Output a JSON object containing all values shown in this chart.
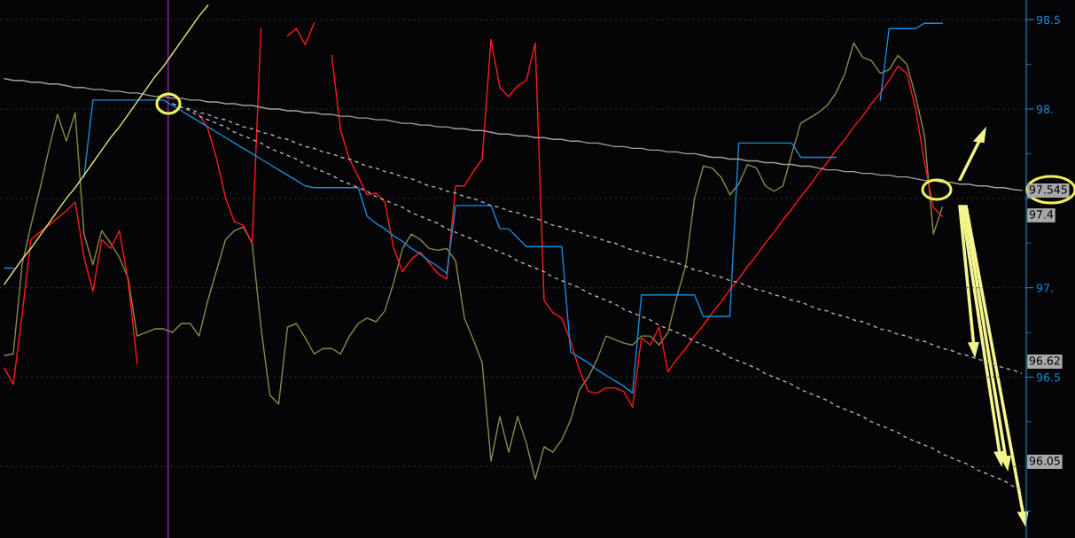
{
  "chart_data": {
    "type": "line",
    "categories": [
      null,
      null,
      null,
      null,
      null,
      null,
      null,
      null,
      null,
      null,
      null,
      null,
      null,
      null,
      null,
      null,
      null,
      null,
      null,
      null,
      null,
      null,
      null,
      null,
      null,
      null,
      null,
      null,
      null,
      null,
      null,
      null,
      null,
      null,
      null,
      null,
      null,
      null,
      null,
      null,
      null,
      null,
      null,
      null,
      null,
      null,
      null,
      null,
      null,
      null,
      null,
      null,
      null,
      null,
      null,
      null,
      null,
      null,
      null,
      null,
      null,
      null,
      null,
      null,
      null,
      null,
      null,
      null,
      null,
      null,
      null,
      null,
      null,
      null,
      null,
      null,
      null,
      null,
      null,
      null,
      null,
      null,
      null,
      null,
      null,
      null,
      null,
      null,
      null,
      null,
      null,
      null,
      null,
      null,
      null,
      null,
      null,
      null,
      null,
      null,
      null,
      null,
      null,
      null,
      null,
      null,
      null,
      null,
      null,
      null,
      null,
      null,
      null,
      null,
      null,
      null
    ],
    "ylim": [
      95.6,
      98.61
    ],
    "yticks": [
      {
        "value": 96,
        "label": null
      },
      {
        "value": 96.5,
        "label": "96.5"
      },
      {
        "value": 97,
        "label": "97."
      },
      {
        "value": 97.5,
        "label": null
      },
      {
        "value": 98,
        "label": "98."
      },
      {
        "value": 98.5,
        "label": "98.5"
      }
    ],
    "tick_labels": "y",
    "grid": "y",
    "marker": "none",
    "series": [
      {
        "color": "#8c8a4e",
        "values": [
          96.62,
          96.63,
          97.13,
          97.35,
          97.55,
          97.77,
          97.97,
          97.82,
          97.98,
          97.3,
          97.13,
          97.32,
          97.25,
          97.17,
          97.05,
          96.73,
          96.75,
          96.77,
          96.77,
          96.75,
          96.8,
          96.8,
          96.73,
          96.93,
          97.1,
          97.27,
          97.32,
          97.34,
          97.25,
          96.78,
          96.4,
          96.35,
          96.78,
          96.8,
          96.72,
          96.63,
          96.66,
          96.66,
          96.63,
          96.73,
          96.8,
          96.83,
          96.81,
          96.87,
          97.03,
          97.22,
          97.3,
          97.27,
          97.22,
          97.21,
          97.22,
          97.15,
          96.83,
          96.71,
          96.58,
          96.03,
          96.28,
          96.08,
          96.28,
          96.13,
          95.93,
          96.11,
          96.08,
          96.15,
          96.26,
          96.43,
          96.5,
          96.6,
          96.73,
          96.71,
          96.69,
          96.68,
          96.73,
          96.73,
          96.68,
          96.75,
          96.95,
          97.12,
          97.5,
          97.68,
          97.67,
          97.62,
          97.52,
          97.58,
          97.69,
          97.67,
          97.57,
          97.54,
          97.57,
          97.75,
          97.92,
          97.95,
          97.98,
          98.02,
          98.09,
          98.2,
          98.37,
          98.29,
          98.27,
          98.2,
          98.22,
          98.3,
          98.25,
          98.07,
          97.85,
          97.3,
          97.45,
          null,
          null,
          null,
          null,
          null,
          null,
          null,
          null,
          null
        ]
      },
      {
        "color": "#ff1a1a",
        "values": [
          96.55,
          96.46,
          96.85,
          97.27,
          97.31,
          97.35,
          97.39,
          97.43,
          97.48,
          97.17,
          96.98,
          97.27,
          97.22,
          97.32,
          97.03,
          96.58,
          null,
          null,
          null,
          null,
          null,
          null,
          97.97,
          97.89,
          97.72,
          97.5,
          97.37,
          97.35,
          97.25,
          98.45,
          null,
          null,
          98.41,
          98.45,
          98.36,
          98.48,
          null,
          98.3,
          97.88,
          97.72,
          97.62,
          97.52,
          97.53,
          97.48,
          97.22,
          97.09,
          97.16,
          97.2,
          97.14,
          97.08,
          97.05,
          97.57,
          97.57,
          97.65,
          97.72,
          98.39,
          98.12,
          98.07,
          98.13,
          98.16,
          98.37,
          96.93,
          96.86,
          96.83,
          96.7,
          96.54,
          96.42,
          96.41,
          96.44,
          96.44,
          96.42,
          96.33,
          96.72,
          96.68,
          96.78,
          96.53,
          96.6,
          96.66,
          96.73,
          96.79,
          96.86,
          96.92,
          96.99,
          97.05,
          97.12,
          97.18,
          97.25,
          97.31,
          97.38,
          97.44,
          97.51,
          97.57,
          97.64,
          97.7,
          97.77,
          97.83,
          97.9,
          97.96,
          98.03,
          98.09,
          98.16,
          98.24,
          98.2,
          98.0,
          97.7,
          97.45,
          97.4,
          null,
          null,
          null,
          null,
          null,
          null,
          null,
          null,
          null
        ]
      },
      {
        "color": "#1a8cd8",
        "values": [
          97.11,
          97.11,
          null,
          null,
          null,
          null,
          null,
          null,
          null,
          97.62,
          98.05,
          98.05,
          98.05,
          98.05,
          98.05,
          98.05,
          98.05,
          98.05,
          98.05,
          98.02,
          97.99,
          97.96,
          97.93,
          97.9,
          97.87,
          97.84,
          97.81,
          97.78,
          97.75,
          97.72,
          97.69,
          97.66,
          97.63,
          97.6,
          97.57,
          97.56,
          97.56,
          97.56,
          97.56,
          97.56,
          97.56,
          97.4,
          97.36,
          97.33,
          97.29,
          97.26,
          97.22,
          97.19,
          97.15,
          97.12,
          97.08,
          97.46,
          97.46,
          97.46,
          97.46,
          97.46,
          97.33,
          97.33,
          97.28,
          97.23,
          97.23,
          97.23,
          97.23,
          97.23,
          96.64,
          96.61,
          96.58,
          96.54,
          96.51,
          96.48,
          96.45,
          96.41,
          96.96,
          96.96,
          96.96,
          96.96,
          96.96,
          96.96,
          96.96,
          96.84,
          96.84,
          96.84,
          96.84,
          97.81,
          97.81,
          97.81,
          97.81,
          97.81,
          97.81,
          97.81,
          97.73,
          97.73,
          97.73,
          97.73,
          97.73,
          null,
          null,
          null,
          null,
          98.05,
          98.45,
          98.45,
          98.45,
          98.45,
          98.48,
          98.48,
          98.48,
          null,
          null,
          null,
          null,
          null,
          null,
          null,
          null,
          null
        ]
      },
      {
        "color": "#a0a0a0",
        "values": [
          98.17,
          98.16,
          98.16,
          98.15,
          98.15,
          98.14,
          98.14,
          98.13,
          98.12,
          98.12,
          98.11,
          98.11,
          98.1,
          98.1,
          98.09,
          98.09,
          98.08,
          98.07,
          98.07,
          98.06,
          98.06,
          98.05,
          98.05,
          98.04,
          98.04,
          98.03,
          98.03,
          98.02,
          98.02,
          98.01,
          98.0,
          98.0,
          97.99,
          97.99,
          97.98,
          97.98,
          97.97,
          97.97,
          97.96,
          97.96,
          97.95,
          97.95,
          97.94,
          97.94,
          97.93,
          97.92,
          97.92,
          97.91,
          97.91,
          97.9,
          97.9,
          97.89,
          97.89,
          97.88,
          97.88,
          97.87,
          97.86,
          97.86,
          97.85,
          97.85,
          97.84,
          97.84,
          97.83,
          97.83,
          97.82,
          97.82,
          97.81,
          97.81,
          97.8,
          97.79,
          97.79,
          97.78,
          97.78,
          97.77,
          97.77,
          97.76,
          97.76,
          97.75,
          97.75,
          97.74,
          97.73,
          97.73,
          97.72,
          97.72,
          97.71,
          97.71,
          97.7,
          97.7,
          97.69,
          97.69,
          97.68,
          97.68,
          97.67,
          97.66,
          97.66,
          97.65,
          97.65,
          97.64,
          97.64,
          97.63,
          97.63,
          97.62,
          97.62,
          97.61,
          97.6,
          97.6,
          97.59,
          97.59,
          97.58,
          97.58,
          97.57,
          97.57,
          97.56,
          97.56,
          97.55,
          97.545
        ]
      },
      {
        "color": "#b4b4b4",
        "line_style": "dashed",
        "values": [
          null,
          null,
          null,
          null,
          null,
          null,
          null,
          null,
          null,
          null,
          null,
          null,
          null,
          null,
          null,
          null,
          null,
          null,
          null,
          98.03,
          98.01,
          98.0,
          97.98,
          97.97,
          97.95,
          97.94,
          97.92,
          97.9,
          97.89,
          97.87,
          97.86,
          97.84,
          97.83,
          97.81,
          97.79,
          97.78,
          97.76,
          97.75,
          97.73,
          97.72,
          97.7,
          97.68,
          97.67,
          97.65,
          97.64,
          97.62,
          97.61,
          97.59,
          97.57,
          97.56,
          97.54,
          97.53,
          97.51,
          97.5,
          97.48,
          97.46,
          97.45,
          97.43,
          97.42,
          97.4,
          97.39,
          97.37,
          97.35,
          97.34,
          97.32,
          97.31,
          97.29,
          97.28,
          97.26,
          97.25,
          97.23,
          97.21,
          97.2,
          97.18,
          97.17,
          97.15,
          97.14,
          97.12,
          97.1,
          97.09,
          97.07,
          97.06,
          97.04,
          97.03,
          97.01,
          96.99,
          96.98,
          96.96,
          96.95,
          96.93,
          96.92,
          96.9,
          96.88,
          96.87,
          96.85,
          96.84,
          96.82,
          96.81,
          96.79,
          96.77,
          96.76,
          96.74,
          96.73,
          96.71,
          96.7,
          96.68,
          96.66,
          96.65,
          96.63,
          96.62,
          96.6,
          96.59,
          96.57,
          96.55,
          96.54,
          96.52
        ]
      },
      {
        "color": "#b4b4b4",
        "line_style": "dashed",
        "values": [
          null,
          null,
          null,
          null,
          null,
          null,
          null,
          null,
          null,
          null,
          null,
          null,
          null,
          null,
          null,
          null,
          null,
          null,
          null,
          98.03,
          98.01,
          97.99,
          97.96,
          97.94,
          97.92,
          97.9,
          97.87,
          97.85,
          97.83,
          97.81,
          97.78,
          97.76,
          97.74,
          97.72,
          97.69,
          97.67,
          97.65,
          97.63,
          97.6,
          97.58,
          97.56,
          97.54,
          97.51,
          97.49,
          97.47,
          97.45,
          97.42,
          97.4,
          97.38,
          97.36,
          97.33,
          97.31,
          97.29,
          97.27,
          97.24,
          97.22,
          97.2,
          97.18,
          97.15,
          97.13,
          97.11,
          97.09,
          97.06,
          97.04,
          97.02,
          97.0,
          96.97,
          96.95,
          96.93,
          96.91,
          96.88,
          96.86,
          96.84,
          96.82,
          96.79,
          96.77,
          96.75,
          96.73,
          96.7,
          96.68,
          96.66,
          96.64,
          96.61,
          96.59,
          96.57,
          96.55,
          96.52,
          96.5,
          96.48,
          96.46,
          96.43,
          96.41,
          96.39,
          96.37,
          96.34,
          96.32,
          96.3,
          96.28,
          96.25,
          96.23,
          96.21,
          96.19,
          96.16,
          96.14,
          96.12,
          96.1,
          96.07,
          96.05,
          96.03,
          96.01,
          95.98,
          95.96,
          95.94,
          95.92,
          95.89,
          95.87
        ]
      },
      {
        "color": "#e6e67a",
        "values": [
          97.02,
          97.09,
          97.16,
          97.22,
          97.29,
          97.36,
          97.43,
          97.5,
          97.56,
          97.63,
          97.7,
          97.77,
          97.84,
          97.9,
          97.97,
          98.04,
          98.11,
          98.18,
          98.24,
          98.31,
          98.38,
          98.45,
          98.52,
          98.58,
          null,
          null,
          null,
          null,
          null,
          null,
          null,
          null,
          null,
          null,
          null,
          null,
          null,
          null,
          null,
          null,
          null,
          null,
          null,
          null,
          null,
          null,
          null,
          null,
          null,
          null,
          null,
          null,
          null,
          null,
          null,
          null,
          null,
          null,
          null,
          null,
          null,
          null,
          null,
          null,
          null,
          null,
          null,
          null,
          null,
          null,
          null,
          null,
          null,
          null,
          null,
          null,
          null,
          null,
          null,
          null,
          null,
          null,
          null,
          null,
          null,
          null,
          null,
          null,
          null,
          null,
          null,
          null,
          null,
          null,
          null,
          null,
          null,
          null,
          null,
          null,
          null,
          null,
          null,
          null,
          null,
          null,
          null,
          null,
          null,
          null,
          null,
          null,
          null,
          null,
          null,
          null
        ]
      }
    ],
    "annotations": [
      "97.545",
      "97.4",
      "96.62",
      "96.05"
    ]
  }
}
